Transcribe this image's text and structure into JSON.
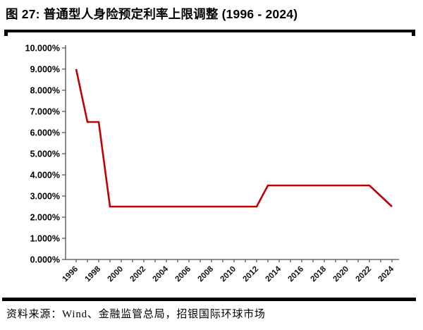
{
  "header": {
    "title": "图 27: 普通型人身险预定利率上限调整 (1996 - 2024)"
  },
  "footer": {
    "source": "资料来源：Wind、金融监管总局，招银国际环球市场"
  },
  "chart_data": {
    "type": "line",
    "title": "图 27: 普通型人身险预定利率上限调整 (1996 - 2024)",
    "xlabel": "",
    "ylabel": "",
    "ylim": [
      0,
      10
    ],
    "grid": false,
    "legend": "none",
    "x": [
      1996,
      1997,
      1998,
      1999,
      2000,
      2001,
      2002,
      2003,
      2004,
      2005,
      2006,
      2007,
      2008,
      2009,
      2010,
      2011,
      2012,
      2013,
      2014,
      2015,
      2016,
      2017,
      2018,
      2019,
      2020,
      2021,
      2022,
      2023,
      2024
    ],
    "series": [
      {
        "name": "普通型人身险预定利率上限",
        "color": "#C00000",
        "values": [
          9.0,
          6.5,
          6.5,
          2.5,
          2.5,
          2.5,
          2.5,
          2.5,
          2.5,
          2.5,
          2.5,
          2.5,
          2.5,
          2.5,
          2.5,
          2.5,
          2.5,
          3.5,
          3.5,
          3.5,
          3.5,
          3.5,
          3.5,
          3.5,
          3.5,
          3.5,
          3.5,
          3.0,
          2.5
        ]
      }
    ],
    "y_tick_labels": [
      "0.000%",
      "1.000%",
      "2.000%",
      "3.000%",
      "4.000%",
      "5.000%",
      "6.000%",
      "7.000%",
      "8.000%",
      "9.000%",
      "10.000%"
    ],
    "x_tick_labels": [
      "1996",
      "1998",
      "2000",
      "2002",
      "2004",
      "2006",
      "2008",
      "2010",
      "2012",
      "2014",
      "2016",
      "2018",
      "2020",
      "2022",
      "2024"
    ],
    "axis_color": "#4d4d4d",
    "tick_label_color": "#111111"
  }
}
